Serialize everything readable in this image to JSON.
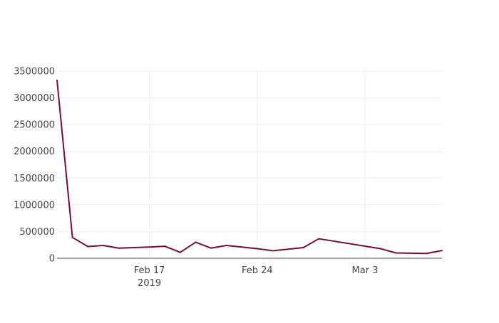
{
  "chart_data": {
    "type": "line",
    "title": "",
    "xlabel": "",
    "ylabel": "",
    "grid": true,
    "line_color": "#7a0a3c",
    "x_ticks": [
      {
        "date": "2019-02-17",
        "label": "Feb 17",
        "sublabel": "2019"
      },
      {
        "date": "2019-02-24",
        "label": "Feb 24",
        "sublabel": ""
      },
      {
        "date": "2019-03-03",
        "label": "Mar 3",
        "sublabel": ""
      }
    ],
    "xlim": [
      "2019-02-11",
      "2019-03-08"
    ],
    "y_ticks": [
      {
        "value": 0,
        "label": "0"
      },
      {
        "value": 500000,
        "label": "500000"
      },
      {
        "value": 1000000,
        "label": "1000000"
      },
      {
        "value": 1500000,
        "label": "1500000"
      },
      {
        "value": 2000000,
        "label": "2000000"
      },
      {
        "value": 2500000,
        "label": "2500000"
      },
      {
        "value": 3000000,
        "label": "3000000"
      },
      {
        "value": 3500000,
        "label": "3500000"
      }
    ],
    "ylim": [
      0,
      3500000
    ],
    "series": [
      {
        "x": [
          "2019-02-11",
          "2019-02-12",
          "2019-02-13",
          "2019-02-14",
          "2019-02-15",
          "2019-02-17",
          "2019-02-18",
          "2019-02-19",
          "2019-02-20",
          "2019-02-21",
          "2019-02-22",
          "2019-02-24",
          "2019-02-25",
          "2019-02-27",
          "2019-02-28",
          "2019-03-04",
          "2019-03-05",
          "2019-03-07",
          "2019-03-08"
        ],
        "values": [
          3330000,
          390000,
          220000,
          240000,
          190000,
          210000,
          225000,
          110000,
          300000,
          190000,
          240000,
          180000,
          140000,
          200000,
          365000,
          180000,
          100000,
          90000,
          145000
        ]
      }
    ]
  }
}
